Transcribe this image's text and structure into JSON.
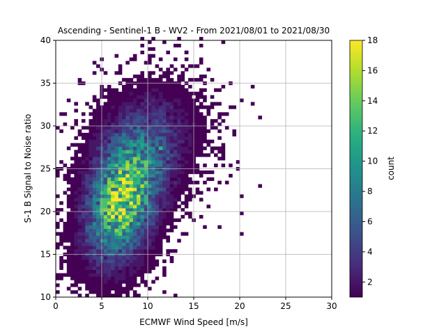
{
  "chart_data": {
    "type": "heatmap",
    "title": "Ascending - Sentinel-1 B - WV2 - From 2021/08/01 to 2021/08/30",
    "xlabel": "ECMWF Wind Speed [m/s]",
    "ylabel": "S-1 B Signal to Noise ratio",
    "xlim": [
      0,
      30
    ],
    "ylim": [
      10,
      40
    ],
    "xticks": [
      "0",
      "5",
      "10",
      "15",
      "20",
      "25",
      "30"
    ],
    "yticks": [
      "10",
      "15",
      "20",
      "25",
      "30",
      "35",
      "40"
    ],
    "grid": true,
    "colormap": "viridis",
    "colorbar": {
      "label": "count",
      "range": [
        1,
        18
      ],
      "ticks": [
        "2",
        "4",
        "6",
        "8",
        "10",
        "12",
        "14",
        "16",
        "18"
      ]
    },
    "bin_width": {
      "x": 0.4,
      "y": 0.4
    },
    "density": {
      "components": [
        {
          "x_center": 7.2,
          "y_center": 21.0,
          "sigma_x": 2.4,
          "sigma_y": 4.3,
          "rho": 0.3,
          "peak": 14
        },
        {
          "x_center": 9.5,
          "y_center": 27.5,
          "sigma_x": 3.3,
          "sigma_y": 4.0,
          "rho": 0.25,
          "peak": 4.5
        }
      ],
      "hotspots": [
        {
          "x": 6.2,
          "y": 19.4,
          "count": 18
        },
        {
          "x": 7.6,
          "y": 21.4,
          "count": 16
        },
        {
          "x": 7.2,
          "y": 22.9,
          "count": 15
        },
        {
          "x": 6.8,
          "y": 17.4,
          "count": 14
        },
        {
          "x": 8.0,
          "y": 19.8,
          "count": 14
        },
        {
          "x": 5.6,
          "y": 20.6,
          "count": 13
        },
        {
          "x": 11.6,
          "y": 27.4,
          "count": 12
        },
        {
          "x": 8.4,
          "y": 23.8,
          "count": 11
        }
      ],
      "outliers": [
        {
          "x": 13.4,
          "y": 39.4
        },
        {
          "x": 14.2,
          "y": 38.6
        },
        {
          "x": 18.2,
          "y": 39.6
        },
        {
          "x": 22.4,
          "y": 23.2
        },
        {
          "x": 22.2,
          "y": 31.2
        },
        {
          "x": 20.4,
          "y": 19.8
        },
        {
          "x": 17.8,
          "y": 18.2
        },
        {
          "x": 16.2,
          "y": 18.2
        },
        {
          "x": 21.4,
          "y": 34.6
        },
        {
          "x": 20.2,
          "y": 17.4
        },
        {
          "x": 20.2,
          "y": 21.6
        },
        {
          "x": 19.2,
          "y": 24.2
        }
      ]
    }
  }
}
